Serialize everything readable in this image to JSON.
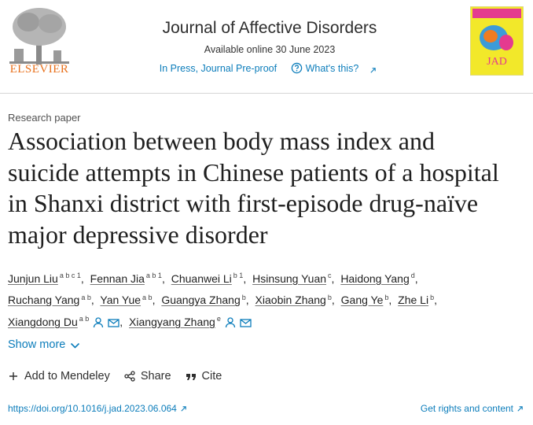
{
  "header": {
    "publisher": "ELSEVIER",
    "journal": "Journal of Affective Disorders",
    "available": "Available online 30 June 2023",
    "status": "In Press, Journal Pre-proof",
    "whats_this": "What's this?",
    "cover_label": "JAD"
  },
  "article": {
    "type": "Research paper",
    "title": "Association between body mass index and suicide attempts in Chinese patients of a hospital in Shanxi district with first-episode drug-naïve major depressive disorder",
    "authors": [
      {
        "name": "Junjun Liu",
        "affiliations": "a b c 1"
      },
      {
        "name": "Fennan Jia",
        "affiliations": "a b 1"
      },
      {
        "name": "Chuanwei Li",
        "affiliations": "b 1"
      },
      {
        "name": "Hsinsung Yuan",
        "affiliations": "c"
      },
      {
        "name": "Haidong Yang",
        "affiliations": "d"
      },
      {
        "name": "Ruchang Yang",
        "affiliations": "a b"
      },
      {
        "name": "Yan Yue",
        "affiliations": "a b"
      },
      {
        "name": "Guangya Zhang",
        "affiliations": "b"
      },
      {
        "name": "Xiaobin Zhang",
        "affiliations": "b"
      },
      {
        "name": "Gang Ye",
        "affiliations": "b"
      },
      {
        "name": "Zhe Li",
        "affiliations": "b"
      },
      {
        "name": "Xiangdong Du",
        "affiliations": "a b",
        "corresponding": true
      },
      {
        "name": "Xiangyang Zhang",
        "affiliations": "e",
        "corresponding": true
      }
    ]
  },
  "show_more": "Show more",
  "actions": [
    "Add to Mendeley",
    "Share",
    "Cite"
  ],
  "doi": "https://doi.org/10.1016/j.jad.2023.06.064",
  "rights": "Get rights and content"
}
